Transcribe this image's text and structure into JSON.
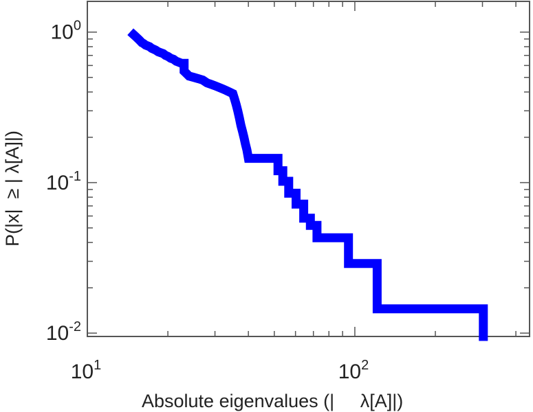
{
  "chart_data": {
    "type": "line",
    "xscale": "log",
    "yscale": "log",
    "xlim": [
      10,
      450
    ],
    "ylim": [
      0.0095,
      1.6
    ],
    "xlabel": "Absolute eigenvalues (|     λ[A]|)",
    "ylabel": "P(|x|  ≥ | λ[A]|)",
    "x_ticks": [
      {
        "value": 10,
        "base": "10",
        "exp": "1"
      },
      {
        "value": 100,
        "base": "10",
        "exp": "2"
      }
    ],
    "y_ticks": [
      {
        "value": 1,
        "base": "10",
        "exp": "0"
      },
      {
        "value": 0.1,
        "base": "10",
        "exp": "-1"
      },
      {
        "value": 0.01,
        "base": "10",
        "exp": "-2"
      }
    ],
    "grid": false,
    "series": [
      {
        "color": "#0000ff",
        "x": [
          14.9,
          15.0,
          15.2,
          15.4,
          15.6,
          15.8,
          16.0,
          16.2,
          16.5,
          16.8,
          17.1,
          17.4,
          17.7,
          18.0,
          18.4,
          18.8,
          19.2,
          19.6,
          20.0,
          20.5,
          21.0,
          21.5,
          22.0,
          22.5,
          23.0,
          23.0,
          23.5,
          24.0,
          25.0,
          26.0,
          27.0,
          28.0,
          29.0,
          30.0,
          31.0,
          32.0,
          33.0,
          34.0,
          35.0,
          35.5,
          36.0,
          36.5,
          37.0,
          37.5,
          38.0,
          38.5,
          39.0,
          39.5,
          40.0,
          40.0,
          51.6,
          51.6,
          53.8,
          53.8,
          56.6,
          56.6,
          60.3,
          60.3,
          64.4,
          64.4,
          68.2,
          68.2,
          72.2,
          72.2,
          94.7,
          94.7,
          121.2,
          121.2,
          302.3,
          302.3
        ],
        "y": [
          0.96,
          0.95,
          0.93,
          0.91,
          0.89,
          0.87,
          0.85,
          0.84,
          0.82,
          0.81,
          0.8,
          0.78,
          0.77,
          0.76,
          0.74,
          0.73,
          0.72,
          0.7,
          0.69,
          0.67,
          0.66,
          0.64,
          0.63,
          0.62,
          0.62,
          0.55,
          0.53,
          0.51,
          0.5,
          0.49,
          0.48,
          0.46,
          0.45,
          0.44,
          0.43,
          0.42,
          0.41,
          0.4,
          0.39,
          0.36,
          0.33,
          0.3,
          0.27,
          0.24,
          0.22,
          0.2,
          0.18,
          0.165,
          0.145,
          0.145,
          0.145,
          0.12,
          0.12,
          0.102,
          0.102,
          0.085,
          0.085,
          0.072,
          0.072,
          0.058,
          0.058,
          0.052,
          0.052,
          0.043,
          0.043,
          0.029,
          0.029,
          0.0145,
          0.0145,
          0.0095
        ]
      }
    ]
  }
}
